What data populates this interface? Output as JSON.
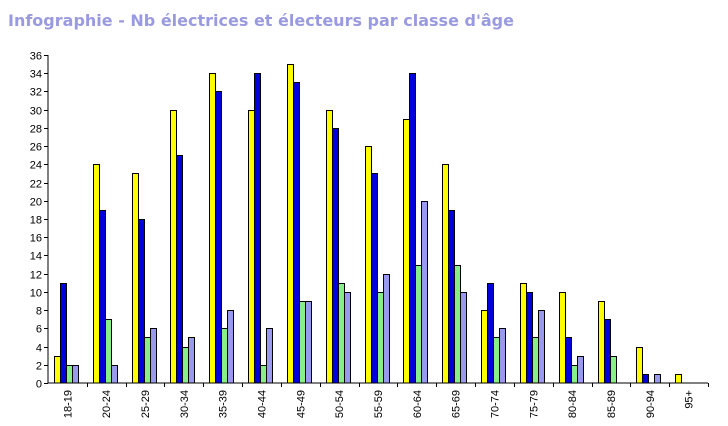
{
  "title": "Infographie - Nb électrices et électeurs par classe d'âge",
  "chart_data": {
    "type": "bar",
    "title": "Infographie - Nb électrices et électeurs par classe d'âge",
    "xlabel": "",
    "ylabel": "",
    "ylim": [
      0,
      36
    ],
    "y_ticks": [
      0,
      2,
      4,
      6,
      8,
      10,
      12,
      14,
      16,
      18,
      20,
      22,
      24,
      26,
      28,
      30,
      32,
      34,
      36
    ],
    "grid": false,
    "legend": "none",
    "categories": [
      "18-19",
      "20-24",
      "25-29",
      "30-34",
      "35-39",
      "40-44",
      "45-49",
      "50-54",
      "55-59",
      "60-64",
      "65-69",
      "70-74",
      "75-79",
      "80-84",
      "85-89",
      "90-94",
      "95+"
    ],
    "series": [
      {
        "color": "#ffff00",
        "values": [
          3,
          24,
          23,
          30,
          34,
          30,
          35,
          30,
          26,
          29,
          24,
          8,
          11,
          10,
          9,
          4,
          1
        ]
      },
      {
        "color": "#0000dd",
        "values": [
          11,
          19,
          18,
          25,
          32,
          34,
          33,
          28,
          23,
          34,
          19,
          11,
          10,
          5,
          7,
          1,
          0
        ]
      },
      {
        "color": "#88ee88",
        "values": [
          2,
          7,
          5,
          4,
          6,
          2,
          9,
          11,
          10,
          13,
          13,
          5,
          5,
          2,
          3,
          0,
          0
        ]
      },
      {
        "color": "#9999ee",
        "values": [
          2,
          2,
          6,
          5,
          8,
          6,
          9,
          10,
          12,
          20,
          10,
          6,
          8,
          3,
          0,
          1,
          0
        ]
      }
    ]
  }
}
